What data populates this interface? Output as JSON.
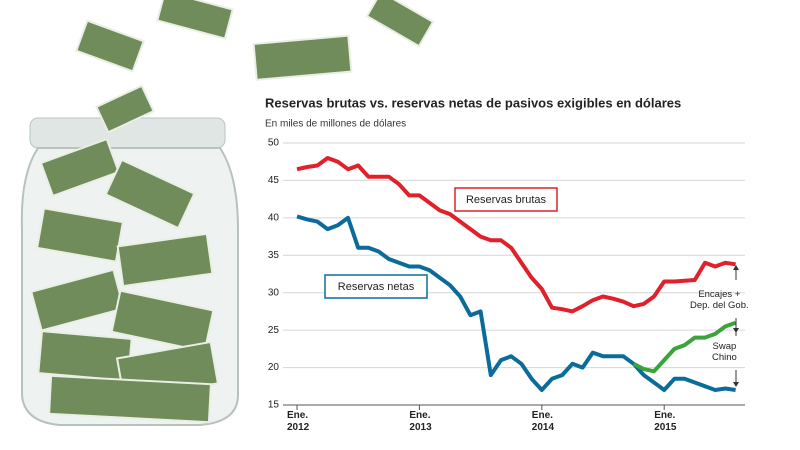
{
  "chart_data": {
    "type": "line",
    "title": "Reservas brutas vs. reservas netas de pasivos exigibles en dólares",
    "subtitle": "En miles de millones de dólares",
    "categories": [
      "Ene.\n2012",
      null,
      null,
      null,
      null,
      null,
      null,
      null,
      null,
      null,
      null,
      null,
      "Ene.\n2013",
      null,
      null,
      null,
      null,
      null,
      null,
      null,
      null,
      null,
      null,
      null,
      "Ene.\n2014",
      null,
      null,
      null,
      null,
      null,
      null,
      null,
      null,
      null,
      null,
      null,
      "Ene.\n2015",
      null,
      null,
      null,
      null,
      null,
      null,
      null
    ],
    "ylim": [
      15,
      50
    ],
    "yticks": [
      15,
      20,
      25,
      30,
      35,
      40,
      45,
      50
    ],
    "grid": true,
    "series": [
      {
        "name": "Reservas brutas",
        "color": "#e0202a",
        "values": [
          46.5,
          46.8,
          47,
          48,
          47.5,
          46.5,
          47,
          45.5,
          45.5,
          45.5,
          44.5,
          43,
          43,
          42,
          41,
          40.5,
          39.5,
          38.5,
          37.5,
          37,
          37,
          36,
          34,
          32,
          30.5,
          28,
          27.8,
          27.5,
          28.2,
          29,
          29.5,
          29.2,
          28.8,
          28.2,
          28.5,
          29.5,
          31.5,
          31.5,
          31.6,
          31.7,
          34,
          33.5,
          34,
          33.8
        ]
      },
      {
        "name": "Reservas netas",
        "color": "#0b6b9b",
        "values": [
          40.2,
          39.8,
          39.5,
          38.5,
          39,
          40,
          36,
          36,
          35.5,
          34.5,
          34,
          33.5,
          33.5,
          33,
          32,
          31,
          29.5,
          27,
          27.5,
          19,
          21,
          21.5,
          20.5,
          18.5,
          17,
          18.5,
          19,
          20.5,
          20,
          22,
          21.5,
          21.5,
          21.5,
          20.5,
          19,
          18,
          17,
          18.5,
          18.5,
          18,
          17.5,
          17,
          17.2,
          17
        ]
      },
      {
        "color": "#3aa33a",
        "values": [
          null,
          null,
          null,
          null,
          null,
          null,
          null,
          null,
          null,
          null,
          null,
          null,
          null,
          null,
          null,
          null,
          null,
          null,
          null,
          null,
          null,
          null,
          null,
          null,
          null,
          null,
          null,
          null,
          null,
          null,
          null,
          null,
          null,
          20.5,
          19.8,
          19.5,
          21,
          22.5,
          23,
          24,
          24,
          24.5,
          25.5,
          26
        ]
      }
    ],
    "annotations": [
      "Encajes +\nDep. del Gob.",
      "Swap\nChino"
    ]
  }
}
